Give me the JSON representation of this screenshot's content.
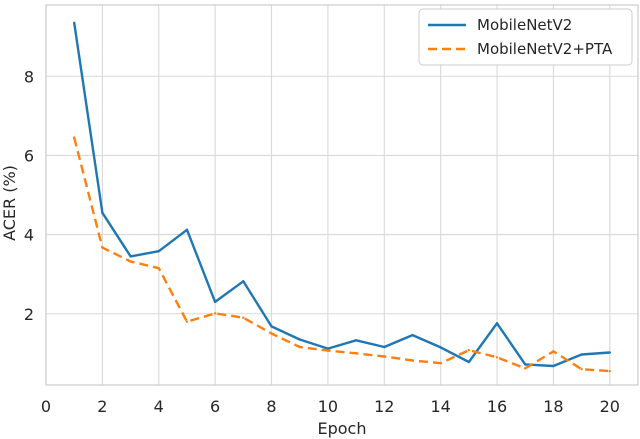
{
  "chart_data": {
    "type": "line",
    "title": "",
    "xlabel": "Epoch",
    "ylabel": "ACER (%)",
    "xlim": [
      0,
      21
    ],
    "ylim": [
      0.2,
      9.8
    ],
    "xticks": [
      0,
      2,
      4,
      6,
      8,
      10,
      12,
      14,
      16,
      18,
      20
    ],
    "yticks": [
      2,
      4,
      6,
      8
    ],
    "grid": true,
    "legend": "top-right",
    "x": [
      1,
      2,
      3,
      4,
      5,
      6,
      7,
      8,
      9,
      10,
      11,
      12,
      13,
      14,
      15,
      16,
      17,
      18,
      19,
      20
    ],
    "series": [
      {
        "name": "MobileNetV2",
        "color": "#1f77b4",
        "style": "solid",
        "values": [
          9.35,
          4.55,
          3.45,
          3.58,
          4.12,
          2.3,
          2.82,
          1.68,
          1.35,
          1.12,
          1.33,
          1.16,
          1.46,
          1.15,
          0.78,
          1.76,
          0.72,
          0.68,
          0.97,
          1.02
        ]
      },
      {
        "name": "MobileNetV2+PTA",
        "color": "#ff7f0e",
        "style": "dashed",
        "values": [
          6.45,
          3.67,
          3.32,
          3.15,
          1.8,
          2.01,
          1.9,
          1.5,
          1.16,
          1.07,
          1.0,
          0.92,
          0.82,
          0.75,
          1.08,
          0.9,
          0.62,
          1.05,
          0.6,
          0.55
        ]
      }
    ]
  }
}
